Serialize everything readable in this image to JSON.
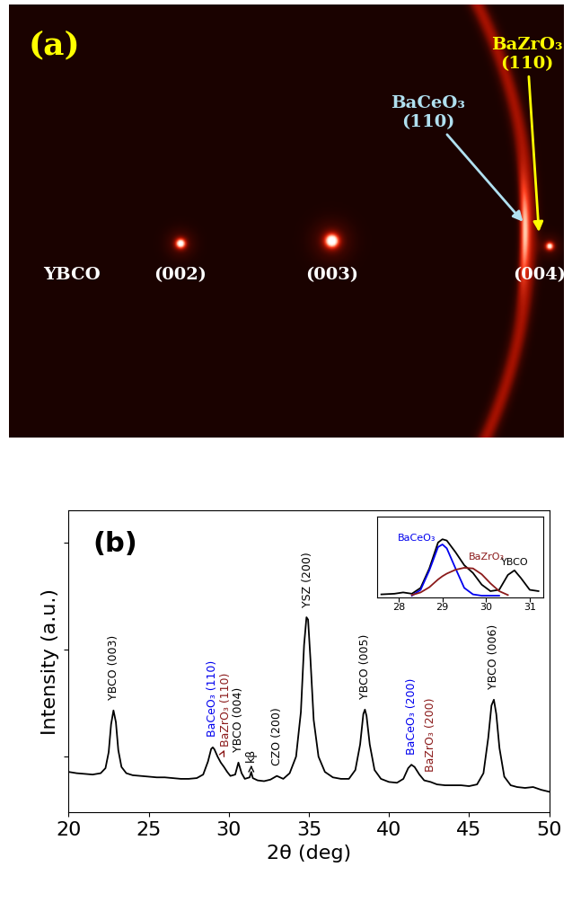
{
  "image_panel": {
    "type": "diagram",
    "label": {
      "text": "(a)",
      "color": "#ffff00"
    },
    "sample": {
      "text": "YBCO",
      "color": "#ffffff"
    },
    "reflections": {
      "texts": [
        "(002)",
        "(003)",
        "(004)"
      ],
      "color": "#ffffff"
    },
    "phases": [
      {
        "text": "BaCeO₃\n(110)",
        "color": "#b0e0f0"
      },
      {
        "text": "BaZrO₃\n(110)",
        "color": "#ffff00"
      }
    ]
  },
  "chart_data": {
    "type": "line",
    "title": "(b)",
    "x_label": "2θ (deg)",
    "y_label": "Intensity (a.u.)",
    "log": "y",
    "tick_labels": "x",
    "xlim": [
      20,
      50
    ],
    "xticks": [
      20,
      25,
      30,
      35,
      40,
      45,
      50
    ],
    "ylim": [
      30,
      20000
    ],
    "yticks": [
      100,
      1000,
      10000
    ],
    "x": [
      20,
      20.5,
      21,
      21.5,
      22,
      22.3,
      22.5,
      22.65,
      22.8,
      22.95,
      23.1,
      23.3,
      23.6,
      24,
      24.5,
      25,
      25.5,
      26,
      26.5,
      27,
      27.5,
      28,
      28.4,
      28.7,
      28.9,
      29.0,
      29.1,
      29.3,
      29.5,
      29.7,
      29.9,
      30.1,
      30.4,
      30.6,
      30.8,
      31.0,
      31.3,
      31.4,
      31.5,
      31.8,
      32.2,
      32.6,
      33.0,
      33.4,
      33.8,
      34.2,
      34.5,
      34.7,
      34.85,
      34.95,
      35.1,
      35.3,
      35.6,
      36.0,
      36.5,
      37.0,
      37.5,
      37.9,
      38.2,
      38.4,
      38.5,
      38.6,
      38.8,
      39.1,
      39.5,
      40.0,
      40.5,
      40.9,
      41.2,
      41.4,
      41.6,
      41.9,
      42.2,
      42.6,
      43.0,
      43.5,
      44.0,
      44.5,
      45.0,
      45.5,
      45.9,
      46.2,
      46.4,
      46.55,
      46.7,
      46.9,
      47.2,
      47.6,
      48.0,
      48.5,
      49.0,
      49.5,
      50.0
    ],
    "series": [
      {
        "color": "#000000",
        "values": [
          72,
          70,
          69,
          68,
          70,
          78,
          110,
          200,
          270,
          210,
          115,
          80,
          70,
          67,
          66,
          65,
          64,
          64,
          63,
          62,
          62,
          63,
          68,
          90,
          118,
          122,
          117,
          100,
          88,
          80,
          72,
          66,
          68,
          88,
          70,
          62,
          64,
          72,
          63,
          60,
          59,
          61,
          66,
          62,
          70,
          100,
          260,
          1100,
          2000,
          1900,
          800,
          220,
          100,
          72,
          64,
          62,
          62,
          75,
          130,
          250,
          275,
          240,
          130,
          75,
          62,
          58,
          57,
          62,
          78,
          84,
          80,
          68,
          60,
          58,
          55,
          54,
          54,
          54,
          53,
          55,
          70,
          150,
          300,
          340,
          250,
          120,
          65,
          54,
          52,
          51,
          52,
          49,
          47
        ]
      }
    ],
    "annotations": [
      {
        "text": "YBCO (003)",
        "x": 22.8,
        "color": "#000000"
      },
      {
        "text": "BaCeO₃ (110)",
        "x": 29.0,
        "color": "#0000ee"
      },
      {
        "text": "BaZrO₃ (110)",
        "x": 29.6,
        "color": "#8b1a1a"
      },
      {
        "text": "YBCO (004)",
        "x": 30.6,
        "color": "#000000"
      },
      {
        "text": "kβ",
        "x": 31.4,
        "color": "#000000"
      },
      {
        "text": "CZO (200)",
        "x": 33.0,
        "color": "#000000"
      },
      {
        "text": "YSZ (200)",
        "x": 34.9,
        "color": "#000000"
      },
      {
        "text": "YBCO (005)",
        "x": 38.5,
        "color": "#000000"
      },
      {
        "text": "BaCeO₃ (200)",
        "x": 41.4,
        "color": "#0000ee"
      },
      {
        "text": "BaZrO₃ (200)",
        "x": 42.6,
        "color": "#8b1a1a"
      },
      {
        "text": "YBCO (006)",
        "x": 46.55,
        "color": "#000000"
      }
    ],
    "inset": {
      "type": "line",
      "tick_labels": "x",
      "xlim": [
        27.5,
        31.3
      ],
      "xticks": [
        28,
        29,
        30,
        31
      ],
      "ylim": [
        0,
        1.25
      ],
      "x": [
        27.6,
        27.9,
        28.1,
        28.3,
        28.5,
        28.7,
        28.9,
        29.0,
        29.1,
        29.3,
        29.5,
        29.7,
        29.9,
        30.1,
        30.3,
        30.5,
        30.65,
        30.8,
        31.0,
        31.2
      ],
      "series": [
        {
          "color": "#000000",
          "values": [
            0.05,
            0.06,
            0.08,
            0.06,
            0.15,
            0.45,
            0.85,
            0.9,
            0.88,
            0.7,
            0.5,
            0.38,
            0.2,
            0.1,
            0.12,
            0.35,
            0.42,
            0.3,
            0.12,
            0.1
          ]
        },
        {
          "name": "BaCeO₃",
          "color": "#0000ee",
          "values": [
            null,
            null,
            null,
            0.03,
            0.12,
            0.42,
            0.78,
            0.82,
            0.76,
            0.45,
            0.15,
            0.05,
            0.03,
            0.03,
            0.03,
            null,
            null,
            null,
            null,
            null
          ]
        },
        {
          "name": "BaZrO₃",
          "color": "#8b1a1a",
          "values": [
            null,
            null,
            null,
            0.04,
            0.08,
            0.16,
            0.28,
            0.33,
            0.37,
            0.43,
            0.46,
            0.45,
            0.36,
            0.22,
            0.1,
            0.04,
            null,
            null,
            null,
            null
          ]
        }
      ],
      "annotations": [
        {
          "text": "YBCO",
          "x": 30.65,
          "color": "#000000"
        }
      ]
    }
  }
}
